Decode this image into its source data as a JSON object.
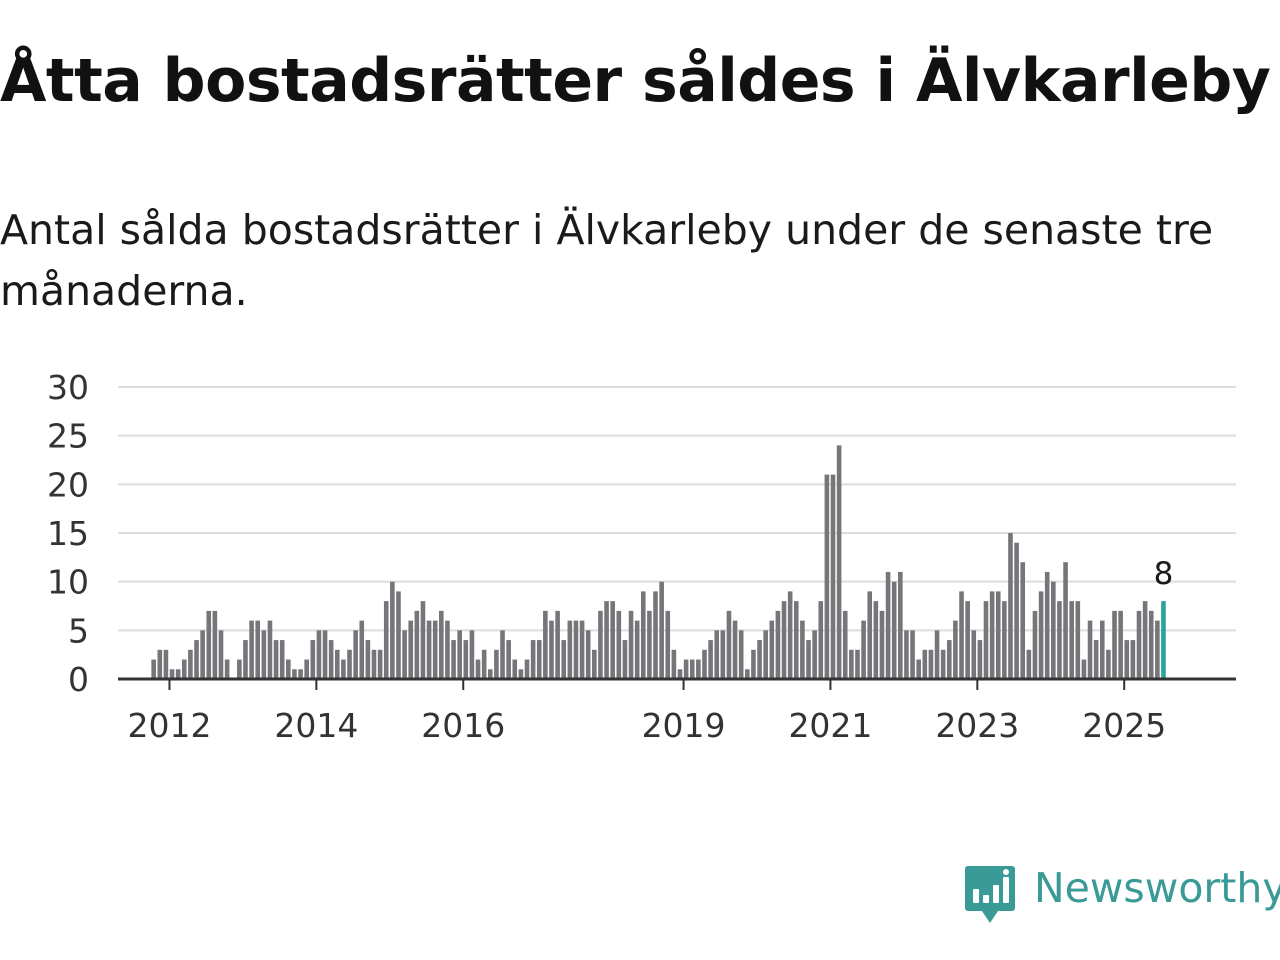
{
  "header": {
    "title": "Åtta bostadsrätter såldes i Älvkarleby",
    "subtitle": "Antal sålda bostadsrätter i Älvkarleby under de senaste tre månaderna."
  },
  "brand": {
    "name": "Newsworthy",
    "logo_icon": "newsworthy-logo-icon",
    "color": "#3a9a96"
  },
  "chart_data": {
    "type": "bar",
    "title": "Åtta bostadsrätter såldes i Älvkarleby",
    "subtitle": "Antal sålda bostadsrätter i Älvkarleby under de senaste tre månaderna.",
    "xlabel": "",
    "ylabel": "",
    "ylim": [
      0,
      30
    ],
    "yticks": [
      "0",
      "5",
      "10",
      "15",
      "20",
      "25",
      "30"
    ],
    "xticks": [
      "2012",
      "2014",
      "2016",
      "2019",
      "2021",
      "2023",
      "2025"
    ],
    "grid": true,
    "bar_color": "#76767a",
    "highlight_color": "#2aa39b",
    "start": "2011-01",
    "highlight_label": "8",
    "values": [
      0,
      0,
      0,
      0,
      0,
      0,
      0,
      0,
      0,
      2,
      3,
      3,
      1,
      1,
      2,
      3,
      4,
      5,
      7,
      7,
      5,
      2,
      0,
      2,
      4,
      6,
      6,
      5,
      6,
      4,
      4,
      2,
      1,
      1,
      2,
      4,
      5,
      5,
      4,
      3,
      2,
      3,
      5,
      6,
      4,
      3,
      3,
      8,
      10,
      9,
      5,
      6,
      7,
      8,
      6,
      6,
      7,
      6,
      4,
      5,
      4,
      5,
      2,
      3,
      1,
      3,
      5,
      4,
      2,
      1,
      2,
      4,
      4,
      7,
      6,
      7,
      4,
      6,
      6,
      6,
      5,
      3,
      7,
      8,
      8,
      7,
      4,
      7,
      6,
      9,
      7,
      9,
      10,
      7,
      3,
      1,
      2,
      2,
      2,
      3,
      4,
      5,
      5,
      7,
      6,
      5,
      1,
      3,
      4,
      5,
      6,
      7,
      8,
      9,
      8,
      6,
      4,
      5,
      8,
      21,
      21,
      24,
      7,
      3,
      3,
      6,
      9,
      8,
      7,
      11,
      10,
      11,
      5,
      5,
      2,
      3,
      3,
      5,
      3,
      4,
      6,
      9,
      8,
      5,
      4,
      8,
      9,
      9,
      8,
      15,
      14,
      12,
      3,
      7,
      9,
      11,
      10,
      8,
      12,
      8,
      8,
      2,
      6,
      4,
      6,
      3,
      7,
      7,
      4,
      4,
      7,
      8,
      7,
      6,
      8
    ]
  }
}
